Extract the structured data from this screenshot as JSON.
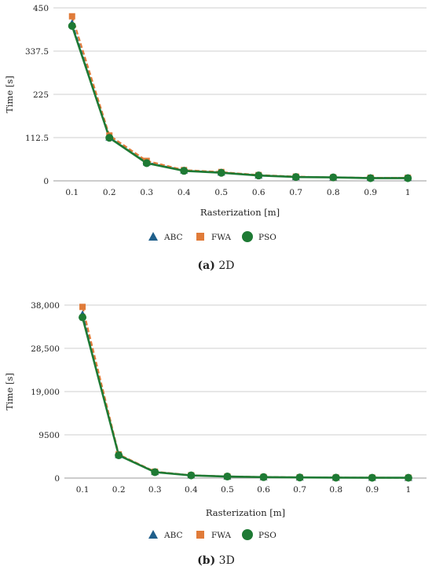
{
  "chart_data": [
    {
      "type": "line",
      "xlabel": "Rasterization [m]",
      "ylabel": "Time [s]",
      "ylim": [
        0,
        450
      ],
      "yticks": [
        "0",
        "112.5",
        "225",
        "337.5",
        "450"
      ],
      "ytick_values": [
        0,
        112.5,
        225,
        337.5,
        450
      ],
      "categories": [
        "0.1",
        "0.2",
        "0.3",
        "0.4",
        "0.5",
        "0.6",
        "0.7",
        "0.8",
        "0.9",
        "1"
      ],
      "grid": true,
      "legend_position": "bottom",
      "series": [
        {
          "name": "ABC",
          "color": "#1f5f8b",
          "marker": "triangle",
          "values": [
            410,
            113,
            48,
            27,
            22,
            14,
            10,
            9,
            8,
            8
          ]
        },
        {
          "name": "FWA",
          "color": "#e07b39",
          "marker": "square",
          "values": [
            428,
            118,
            52,
            28,
            23,
            15,
            11,
            9,
            8,
            8
          ]
        },
        {
          "name": "PSO",
          "color": "#1e7a34",
          "marker": "circle",
          "values": [
            403,
            112,
            46,
            26,
            21,
            14,
            10,
            9,
            7,
            7
          ]
        }
      ],
      "caption_tag": "(a)",
      "caption_text": "2D"
    },
    {
      "type": "line",
      "xlabel": "Rasterization [m]",
      "ylabel": "Time [s]",
      "ylim": [
        0,
        38000
      ],
      "yticks": [
        "0",
        "9500",
        "19,000",
        "28,500",
        "38,000"
      ],
      "ytick_values": [
        0,
        9500,
        19000,
        28500,
        38000
      ],
      "categories": [
        "0.1",
        "0.2",
        "0.3",
        "0.4",
        "0.5",
        "0.6",
        "0.7",
        "0.8",
        "0.9",
        "1"
      ],
      "grid": true,
      "legend_position": "bottom",
      "series": [
        {
          "name": "ABC",
          "color": "#1f5f8b",
          "marker": "triangle",
          "values": [
            36000,
            5100,
            1350,
            600,
            350,
            220,
            150,
            100,
            80,
            70
          ]
        },
        {
          "name": "FWA",
          "color": "#e07b39",
          "marker": "square",
          "values": [
            37600,
            5200,
            1400,
            620,
            360,
            230,
            160,
            110,
            85,
            75
          ]
        },
        {
          "name": "PSO",
          "color": "#1e7a34",
          "marker": "circle",
          "values": [
            35300,
            5000,
            1300,
            580,
            340,
            210,
            140,
            95,
            75,
            65
          ]
        }
      ],
      "caption_tag": "(b)",
      "caption_text": "3D"
    }
  ]
}
